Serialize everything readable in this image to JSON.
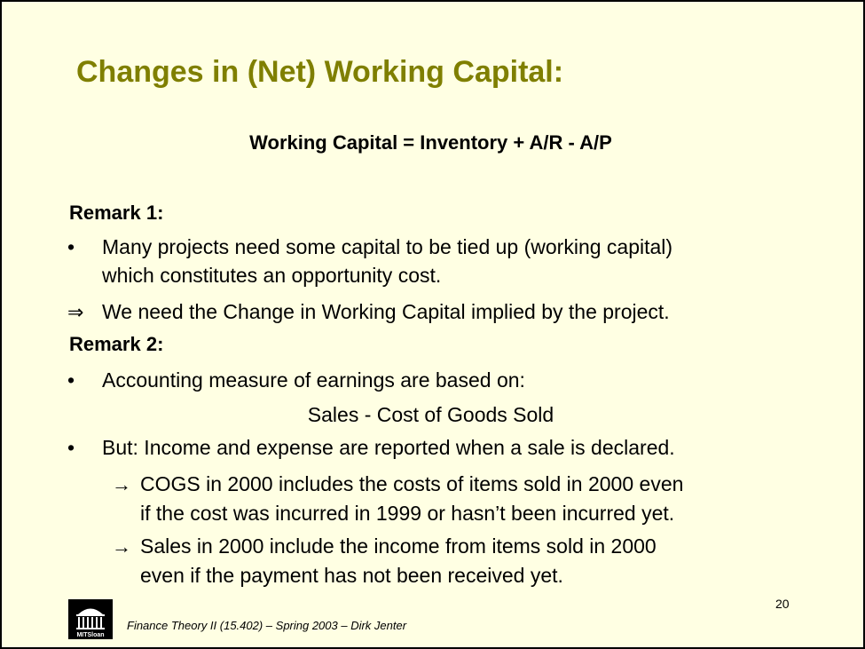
{
  "slide": {
    "title": "Changes in (Net) Working Capital:",
    "formula": "Working Capital = Inventory + A/R - A/P",
    "remark1": {
      "heading": "Remark 1:",
      "bullet_line1": "Many projects need some capital to be tied up (working capital)",
      "bullet_line2": "which constitutes an opportunity cost.",
      "implication": "We need the Change in Working Capital implied by the project."
    },
    "remark2": {
      "heading": "Remark 2:",
      "bullet1": "Accounting measure of earnings are based on:",
      "centered": "Sales - Cost of Goods Sold",
      "bullet2": "But: Income and expense are reported when a sale is declared.",
      "sub1_line1": "COGS in 2000 includes the costs of items sold in 2000 even",
      "sub1_line2": "if the cost was incurred in 1999 or hasn’t been incurred yet.",
      "sub2_line1": "Sales in 2000 include the income from items sold in 2000",
      "sub2_line2": "even if the payment has not been received yet."
    },
    "symbols": {
      "bullet": "•",
      "implies": "⇒",
      "arrow": "→"
    },
    "page_number": "20",
    "footer": "Finance Theory II (15.402) – Spring 2003 – Dirk Jenter",
    "logo_text": "MITSloan",
    "colors": {
      "title": "#7f7f00",
      "background": "#ffffe3"
    }
  }
}
